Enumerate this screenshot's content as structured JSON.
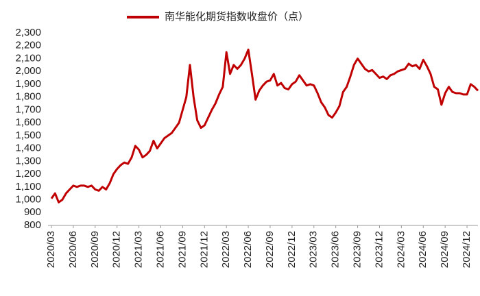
{
  "chart_data": {
    "type": "line",
    "categories": [
      "2020/03",
      null,
      null,
      null,
      null,
      null,
      "2020/06",
      null,
      null,
      null,
      null,
      null,
      "2020/09",
      null,
      null,
      null,
      null,
      null,
      "2020/12",
      null,
      null,
      null,
      null,
      null,
      "2021/03",
      null,
      null,
      null,
      null,
      null,
      "2021/06",
      null,
      null,
      null,
      null,
      null,
      "2021/09",
      null,
      null,
      null,
      null,
      null,
      "2021/12",
      null,
      null,
      null,
      null,
      null,
      "2022/03",
      null,
      null,
      null,
      null,
      null,
      "2022/06",
      null,
      null,
      null,
      null,
      null,
      "2022/09",
      null,
      null,
      null,
      null,
      null,
      "2022/12",
      null,
      null,
      null,
      null,
      null,
      "2023/03",
      null,
      null,
      null,
      null,
      null,
      "2023/06",
      null,
      null,
      null,
      null,
      null,
      "2023/09",
      null,
      null,
      null,
      null,
      null,
      "2023/12",
      null,
      null,
      null,
      null,
      null,
      "2024/03",
      null,
      null,
      null,
      null,
      null,
      "2024/06",
      null,
      null,
      null,
      null,
      null,
      "2024/09",
      null,
      null,
      null,
      null,
      null,
      "2024/12",
      null,
      null,
      null
    ],
    "series": [
      {
        "name": "南华能化期货指数收盘价（点）",
        "color": "#c00000",
        "values": [
          1010,
          1050,
          980,
          1000,
          1050,
          1080,
          1110,
          1100,
          1110,
          1110,
          1100,
          1110,
          1080,
          1070,
          1100,
          1080,
          1130,
          1200,
          1240,
          1270,
          1290,
          1280,
          1330,
          1420,
          1390,
          1330,
          1350,
          1380,
          1460,
          1400,
          1440,
          1480,
          1500,
          1520,
          1560,
          1600,
          1700,
          1800,
          2050,
          1800,
          1620,
          1560,
          1580,
          1640,
          1700,
          1750,
          1820,
          1880,
          2150,
          1980,
          2050,
          2020,
          2050,
          2100,
          2170,
          1980,
          1780,
          1850,
          1890,
          1920,
          1930,
          1980,
          1890,
          1910,
          1870,
          1860,
          1900,
          1920,
          1970,
          1930,
          1890,
          1900,
          1890,
          1830,
          1760,
          1720,
          1660,
          1640,
          1680,
          1730,
          1840,
          1880,
          1960,
          2050,
          2100,
          2060,
          2020,
          2000,
          2010,
          1980,
          1950,
          1960,
          1940,
          1970,
          1980,
          2000,
          2010,
          2020,
          2060,
          2040,
          2050,
          2020,
          2090,
          2040,
          1980,
          1880,
          1860,
          1740,
          1830,
          1880,
          1840,
          1830,
          1830,
          1820,
          1820,
          1900,
          1880,
          1850
        ]
      }
    ],
    "ylim": [
      800,
      2300
    ],
    "yticks": [
      800,
      900,
      {
        "value": 1000,
        "label": "1,000"
      },
      {
        "value": 1100,
        "label": "1,100"
      },
      {
        "value": 1200,
        "label": "1,200"
      },
      {
        "value": 1300,
        "label": "1,300"
      },
      {
        "value": 1400,
        "label": "1,400"
      },
      {
        "value": 1500,
        "label": "1,500"
      },
      {
        "value": 1600,
        "label": "1,600"
      },
      {
        "value": 1700,
        "label": "1,700"
      },
      {
        "value": 1800,
        "label": "1,800"
      },
      {
        "value": 1900,
        "label": "1,900"
      },
      {
        "value": 2000,
        "label": "2,000"
      },
      {
        "value": 2100,
        "label": "2,100"
      },
      {
        "value": 2200,
        "label": "2,200"
      },
      {
        "value": 2300,
        "label": "2,300"
      }
    ],
    "grid": false,
    "legend": "top"
  }
}
